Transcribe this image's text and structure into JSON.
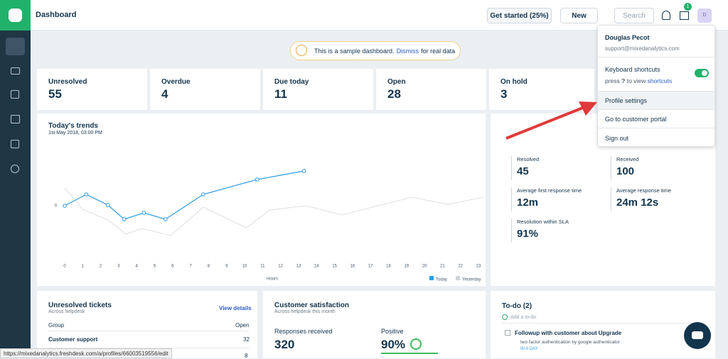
{
  "header": {
    "title": "Dashboard",
    "get_started": "Get started (25%)",
    "new": "New",
    "search": "Search",
    "badge": "1",
    "avatar": "D"
  },
  "banner": {
    "text": "This is a sample dashboard.",
    "link": "Dismiss",
    "rest": "for real data"
  },
  "stats": [
    {
      "label": "Unresolved",
      "value": 55
    },
    {
      "label": "Overdue",
      "value": 4
    },
    {
      "label": "Due today",
      "value": 11
    },
    {
      "label": "Open",
      "value": 28
    },
    {
      "label": "On hold",
      "value": 3
    }
  ],
  "trends": {
    "type": "line",
    "title": "Today's trends",
    "subtitle": "1st May 2018, 03:00 PM",
    "x_label": "Hours",
    "xlim": [
      0,
      23
    ],
    "xticks": [
      0,
      1,
      2,
      3,
      4,
      5,
      6,
      7,
      8,
      9,
      10,
      11,
      12,
      13,
      14,
      15,
      16,
      17,
      18,
      19,
      20,
      21,
      22,
      23
    ],
    "ylim": [
      -7.5,
      9
    ],
    "yticks": [
      0
    ],
    "series": [
      {
        "name": "Today",
        "color": "#2c9be6",
        "x": [
          0,
          1.2,
          2.4,
          3.3,
          4.4,
          5.6,
          7.7,
          10.7,
          13.3
        ],
        "values": [
          0,
          1.6,
          0.1,
          -1.9,
          -1,
          -1.9,
          1.6,
          3.7,
          4.9
        ]
      },
      {
        "name": "Yesterday",
        "color": "#dcdfe3",
        "x": [
          0,
          1,
          2.4,
          3.4,
          4.3,
          5.9,
          7.7,
          10.1,
          11.4,
          13.4,
          15.4,
          17.4,
          19.3,
          21.3,
          23.3
        ],
        "values": [
          2.5,
          -0.5,
          -2,
          -4,
          -3.2,
          -4.2,
          -0.2,
          -3.1,
          -0.6,
          0,
          -1.3,
          0,
          1.2,
          0.2,
          1.2
        ]
      }
    ]
  },
  "right_stats": [
    {
      "label": "Resolved",
      "value": "45"
    },
    {
      "label": "Received",
      "value": "100"
    },
    {
      "label": "Average first response time",
      "value": "12m"
    },
    {
      "label": "Average response time",
      "value": "24m 12s"
    },
    {
      "label": "Resolution within SLA",
      "value": "91%"
    }
  ],
  "unresolved": {
    "title": "Unresolved tickets",
    "subtitle": "Across helpdesk",
    "link": "View details",
    "col_group": "Group",
    "col_open": "Open",
    "rows": [
      {
        "group": "Customer support",
        "open": 32
      },
      {
        "open": 8
      }
    ]
  },
  "satisfaction": {
    "title": "Customer satisfaction",
    "subtitle": "Across helpdesk this month",
    "responses_label": "Responses received",
    "responses": 320,
    "positive_label": "Positive",
    "positive": "90%"
  },
  "todo": {
    "title": "To-do (2)",
    "add": "Add a to-do",
    "item": "Followup with customer about Upgrade",
    "detail": "two factor authentication by google authenticator",
    "tag": "IN A DAY"
  },
  "dropdown": {
    "name": "Douglas Pecot",
    "email": "support@mixedanalytics.com",
    "shortcuts": "Keyboard shortcuts",
    "press": "press",
    "key": "?",
    "to_view": "to view",
    "shortcuts_link": "shortcuts",
    "profile": "Profile settings",
    "portal": "Go to customer portal",
    "signout": "Sign out"
  },
  "status_url": "https://mixedanalytics.freshdesk.com/a/profiles/66003519556/edit"
}
